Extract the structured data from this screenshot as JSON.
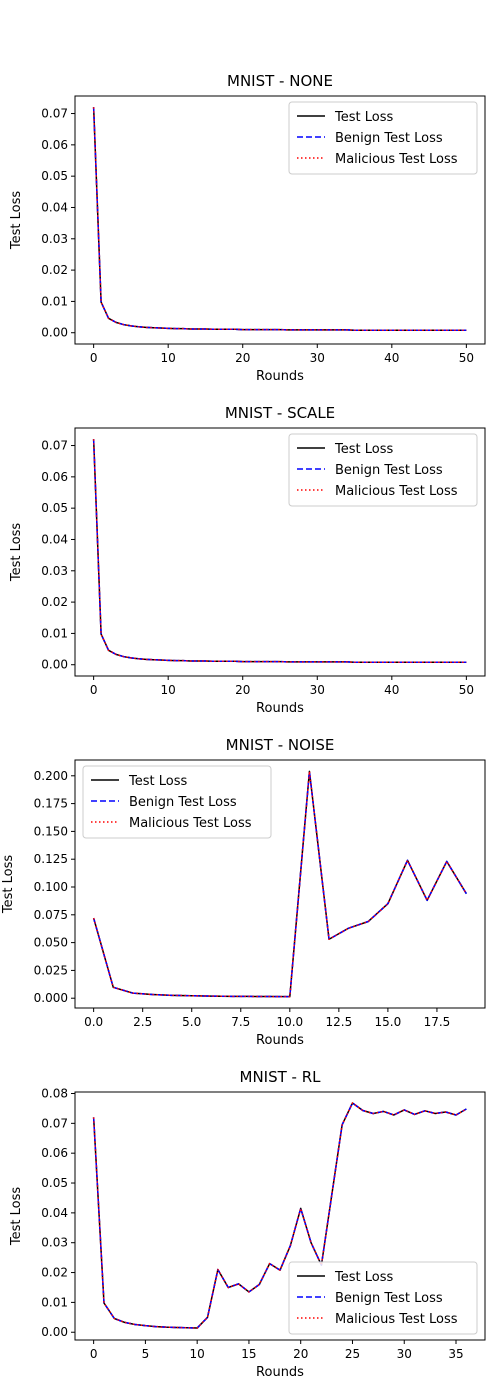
{
  "legend_labels": [
    "Test Loss",
    "Benign Test Loss",
    "Malicious Test Loss"
  ],
  "colors": {
    "test": "#000000",
    "benign": "#0000ff",
    "malicious": "#ff0000"
  },
  "chart_data": [
    {
      "type": "line",
      "title": "MNIST - NONE",
      "xlabel": "Rounds",
      "ylabel": "Test Loss",
      "xlim": [
        -2.5,
        52.5
      ],
      "ylim": [
        -0.0036,
        0.0756
      ],
      "xticks": [
        0,
        10,
        20,
        30,
        40,
        50
      ],
      "xtick_labels": [
        "0",
        "10",
        "20",
        "30",
        "40",
        "50"
      ],
      "yticks": [
        0,
        0.01,
        0.02,
        0.03,
        0.04,
        0.05,
        0.06,
        0.07
      ],
      "ytick_labels": [
        "0.00",
        "0.01",
        "0.02",
        "0.03",
        "0.04",
        "0.05",
        "0.06",
        "0.07"
      ],
      "legend_loc": "upper right",
      "x": [
        0,
        1,
        2,
        3,
        4,
        5,
        6,
        7,
        8,
        9,
        10,
        11,
        12,
        13,
        14,
        15,
        16,
        17,
        18,
        19,
        20,
        21,
        22,
        23,
        24,
        25,
        26,
        27,
        28,
        29,
        30,
        31,
        32,
        33,
        34,
        35,
        36,
        37,
        38,
        39,
        40,
        41,
        42,
        43,
        44,
        45,
        46,
        47,
        48,
        49,
        50
      ],
      "series": [
        {
          "name": "Test Loss",
          "values": [
            0.072,
            0.0098,
            0.0046,
            0.0033,
            0.0026,
            0.0022,
            0.0019,
            0.0017,
            0.0016,
            0.0015,
            0.0014,
            0.0013,
            0.0013,
            0.0012,
            0.0012,
            0.0012,
            0.0011,
            0.0011,
            0.0011,
            0.0011,
            0.001,
            0.001,
            0.001,
            0.001,
            0.001,
            0.001,
            0.0009,
            0.0009,
            0.0009,
            0.0009,
            0.0009,
            0.0009,
            0.0009,
            0.0009,
            0.0009,
            0.0008,
            0.0008,
            0.0008,
            0.0008,
            0.0008,
            0.0008,
            0.0008,
            0.0008,
            0.0008,
            0.0008,
            0.0008,
            0.0008,
            0.0008,
            0.0008,
            0.0008,
            0.0008
          ]
        },
        {
          "name": "Benign Test Loss",
          "values": [
            0.072,
            0.0098,
            0.0046,
            0.0033,
            0.0026,
            0.0022,
            0.0019,
            0.0017,
            0.0016,
            0.0015,
            0.0014,
            0.0013,
            0.0013,
            0.0012,
            0.0012,
            0.0012,
            0.0011,
            0.0011,
            0.0011,
            0.0011,
            0.001,
            0.001,
            0.001,
            0.001,
            0.001,
            0.001,
            0.0009,
            0.0009,
            0.0009,
            0.0009,
            0.0009,
            0.0009,
            0.0009,
            0.0009,
            0.0009,
            0.0008,
            0.0008,
            0.0008,
            0.0008,
            0.0008,
            0.0008,
            0.0008,
            0.0008,
            0.0008,
            0.0008,
            0.0008,
            0.0008,
            0.0008,
            0.0008,
            0.0008,
            0.0008
          ]
        },
        {
          "name": "Malicious Test Loss",
          "values": [
            0.072,
            0.0098,
            0.0046,
            0.0033,
            0.0026,
            0.0022,
            0.0019,
            0.0017,
            0.0016,
            0.0015,
            0.0014,
            0.0013,
            0.0013,
            0.0012,
            0.0012,
            0.0012,
            0.0011,
            0.0011,
            0.0011,
            0.0011,
            0.001,
            0.001,
            0.001,
            0.001,
            0.001,
            0.001,
            0.0009,
            0.0009,
            0.0009,
            0.0009,
            0.0009,
            0.0009,
            0.0009,
            0.0009,
            0.0009,
            0.0008,
            0.0008,
            0.0008,
            0.0008,
            0.0008,
            0.0008,
            0.0008,
            0.0008,
            0.0008,
            0.0008,
            0.0008,
            0.0008,
            0.0008,
            0.0008,
            0.0008,
            0.0008
          ]
        }
      ]
    },
    {
      "type": "line",
      "title": "MNIST - SCALE",
      "xlabel": "Rounds",
      "ylabel": "Test Loss",
      "xlim": [
        -2.5,
        52.5
      ],
      "ylim": [
        -0.0036,
        0.0756
      ],
      "xticks": [
        0,
        10,
        20,
        30,
        40,
        50
      ],
      "xtick_labels": [
        "0",
        "10",
        "20",
        "30",
        "40",
        "50"
      ],
      "yticks": [
        0,
        0.01,
        0.02,
        0.03,
        0.04,
        0.05,
        0.06,
        0.07
      ],
      "ytick_labels": [
        "0.00",
        "0.01",
        "0.02",
        "0.03",
        "0.04",
        "0.05",
        "0.06",
        "0.07"
      ],
      "legend_loc": "upper right",
      "x": [
        0,
        1,
        2,
        3,
        4,
        5,
        6,
        7,
        8,
        9,
        10,
        11,
        12,
        13,
        14,
        15,
        16,
        17,
        18,
        19,
        20,
        21,
        22,
        23,
        24,
        25,
        26,
        27,
        28,
        29,
        30,
        31,
        32,
        33,
        34,
        35,
        36,
        37,
        38,
        39,
        40,
        41,
        42,
        43,
        44,
        45,
        46,
        47,
        48,
        49,
        50
      ],
      "series": [
        {
          "name": "Test Loss",
          "values": [
            0.072,
            0.0098,
            0.0046,
            0.0033,
            0.0026,
            0.0022,
            0.0019,
            0.0017,
            0.0016,
            0.0015,
            0.0014,
            0.0013,
            0.0013,
            0.0012,
            0.0012,
            0.0012,
            0.0011,
            0.0011,
            0.0011,
            0.0011,
            0.001,
            0.001,
            0.001,
            0.001,
            0.001,
            0.001,
            0.0009,
            0.0009,
            0.0009,
            0.0009,
            0.0009,
            0.0009,
            0.0009,
            0.0009,
            0.0009,
            0.0008,
            0.0008,
            0.0008,
            0.0008,
            0.0008,
            0.0008,
            0.0008,
            0.0008,
            0.0008,
            0.0008,
            0.0008,
            0.0008,
            0.0008,
            0.0008,
            0.0008,
            0.0008
          ]
        },
        {
          "name": "Benign Test Loss",
          "values": [
            0.072,
            0.0098,
            0.0046,
            0.0033,
            0.0026,
            0.0022,
            0.0019,
            0.0017,
            0.0016,
            0.0015,
            0.0014,
            0.0013,
            0.0013,
            0.0012,
            0.0012,
            0.0012,
            0.0011,
            0.0011,
            0.0011,
            0.0011,
            0.001,
            0.001,
            0.001,
            0.001,
            0.001,
            0.001,
            0.0009,
            0.0009,
            0.0009,
            0.0009,
            0.0009,
            0.0009,
            0.0009,
            0.0009,
            0.0009,
            0.0008,
            0.0008,
            0.0008,
            0.0008,
            0.0008,
            0.0008,
            0.0008,
            0.0008,
            0.0008,
            0.0008,
            0.0008,
            0.0008,
            0.0008,
            0.0008,
            0.0008,
            0.0008
          ]
        },
        {
          "name": "Malicious Test Loss",
          "values": [
            0.072,
            0.0098,
            0.0046,
            0.0033,
            0.0026,
            0.0022,
            0.0019,
            0.0017,
            0.0016,
            0.0015,
            0.0014,
            0.0013,
            0.0013,
            0.0012,
            0.0012,
            0.0012,
            0.0011,
            0.0011,
            0.0011,
            0.0011,
            0.001,
            0.001,
            0.001,
            0.001,
            0.001,
            0.001,
            0.0009,
            0.0009,
            0.0009,
            0.0009,
            0.0009,
            0.0009,
            0.0009,
            0.0009,
            0.0009,
            0.0008,
            0.0008,
            0.0008,
            0.0008,
            0.0008,
            0.0008,
            0.0008,
            0.0008,
            0.0008,
            0.0008,
            0.0008,
            0.0008,
            0.0008,
            0.0008,
            0.0008,
            0.0008
          ]
        }
      ]
    },
    {
      "type": "line",
      "title": "MNIST - NOISE",
      "xlabel": "Rounds",
      "ylabel": "Test Loss",
      "xlim": [
        -0.95,
        19.95
      ],
      "ylim": [
        -0.0088,
        0.2142
      ],
      "xticks": [
        0,
        2.5,
        5,
        7.5,
        10,
        12.5,
        15,
        17.5
      ],
      "xtick_labels": [
        "0.0",
        "2.5",
        "5.0",
        "7.5",
        "10.0",
        "12.5",
        "15.0",
        "17.5"
      ],
      "yticks": [
        0,
        0.025,
        0.05,
        0.075,
        0.1,
        0.125,
        0.15,
        0.175,
        0.2
      ],
      "ytick_labels": [
        "0.000",
        "0.025",
        "0.050",
        "0.075",
        "0.100",
        "0.125",
        "0.150",
        "0.175",
        "0.200"
      ],
      "legend_loc": "upper left",
      "x": [
        0,
        1,
        2,
        3,
        4,
        5,
        6,
        7,
        8,
        9,
        10,
        11,
        12,
        13,
        14,
        15,
        16,
        17,
        18,
        19
      ],
      "series": [
        {
          "name": "Test Loss",
          "values": [
            0.072,
            0.0098,
            0.0046,
            0.0033,
            0.0026,
            0.0022,
            0.0019,
            0.0017,
            0.0016,
            0.0015,
            0.0014,
            0.204,
            0.053,
            0.063,
            0.069,
            0.085,
            0.124,
            0.088,
            0.123,
            0.094
          ]
        },
        {
          "name": "Benign Test Loss",
          "values": [
            0.072,
            0.0098,
            0.0046,
            0.0033,
            0.0026,
            0.0022,
            0.0019,
            0.0017,
            0.0016,
            0.0015,
            0.0014,
            0.204,
            0.053,
            0.063,
            0.069,
            0.085,
            0.124,
            0.088,
            0.123,
            0.094
          ]
        },
        {
          "name": "Malicious Test Loss",
          "values": [
            0.072,
            0.0098,
            0.0046,
            0.0033,
            0.0026,
            0.0022,
            0.0019,
            0.0017,
            0.0016,
            0.0015,
            0.0014,
            0.204,
            0.053,
            0.063,
            0.069,
            0.085,
            0.124,
            0.088,
            0.123,
            0.094
          ]
        }
      ]
    },
    {
      "type": "line",
      "title": "MNIST - RL",
      "xlabel": "Rounds",
      "ylabel": "Test Loss",
      "xlim": [
        -1.8,
        37.8
      ],
      "ylim": [
        -0.0026,
        0.0805
      ],
      "xticks": [
        0,
        5,
        10,
        15,
        20,
        25,
        30,
        35
      ],
      "xtick_labels": [
        "0",
        "5",
        "10",
        "15",
        "20",
        "25",
        "30",
        "35"
      ],
      "yticks": [
        0,
        0.01,
        0.02,
        0.03,
        0.04,
        0.05,
        0.06,
        0.07,
        0.08
      ],
      "ytick_labels": [
        "0.00",
        "0.01",
        "0.02",
        "0.03",
        "0.04",
        "0.05",
        "0.06",
        "0.07",
        "0.08"
      ],
      "legend_loc": "lower right",
      "x": [
        0,
        1,
        2,
        3,
        4,
        5,
        6,
        7,
        8,
        9,
        10,
        11,
        12,
        13,
        14,
        15,
        16,
        17,
        18,
        19,
        20,
        21,
        22,
        23,
        24,
        25,
        26,
        27,
        28,
        29,
        30,
        31,
        32,
        33,
        34,
        35,
        36
      ],
      "series": [
        {
          "name": "Test Loss",
          "values": [
            0.072,
            0.0098,
            0.0046,
            0.0033,
            0.0026,
            0.0022,
            0.0019,
            0.0017,
            0.0016,
            0.0015,
            0.0014,
            0.005,
            0.021,
            0.015,
            0.0162,
            0.0135,
            0.016,
            0.023,
            0.0208,
            0.029,
            0.0415,
            0.03,
            0.0225,
            0.046,
            0.0695,
            0.0768,
            0.0743,
            0.0733,
            0.074,
            0.0728,
            0.0745,
            0.073,
            0.0742,
            0.0733,
            0.0738,
            0.0728,
            0.0748
          ]
        },
        {
          "name": "Benign Test Loss",
          "values": [
            0.072,
            0.0098,
            0.0046,
            0.0033,
            0.0026,
            0.0022,
            0.0019,
            0.0017,
            0.0016,
            0.0015,
            0.0014,
            0.005,
            0.021,
            0.015,
            0.0162,
            0.0135,
            0.016,
            0.023,
            0.0208,
            0.029,
            0.0415,
            0.03,
            0.0225,
            0.046,
            0.0695,
            0.0768,
            0.0743,
            0.0733,
            0.074,
            0.0728,
            0.0745,
            0.073,
            0.0742,
            0.0733,
            0.0738,
            0.0728,
            0.0748
          ]
        },
        {
          "name": "Malicious Test Loss",
          "values": [
            0.072,
            0.0098,
            0.0046,
            0.0033,
            0.0026,
            0.0022,
            0.0019,
            0.0017,
            0.0016,
            0.0015,
            0.0014,
            0.005,
            0.021,
            0.015,
            0.0162,
            0.0135,
            0.016,
            0.023,
            0.0208,
            0.029,
            0.0415,
            0.03,
            0.0225,
            0.046,
            0.0695,
            0.0768,
            0.0743,
            0.0733,
            0.074,
            0.0728,
            0.0745,
            0.073,
            0.0742,
            0.0733,
            0.0738,
            0.0728,
            0.0748
          ]
        }
      ]
    }
  ]
}
